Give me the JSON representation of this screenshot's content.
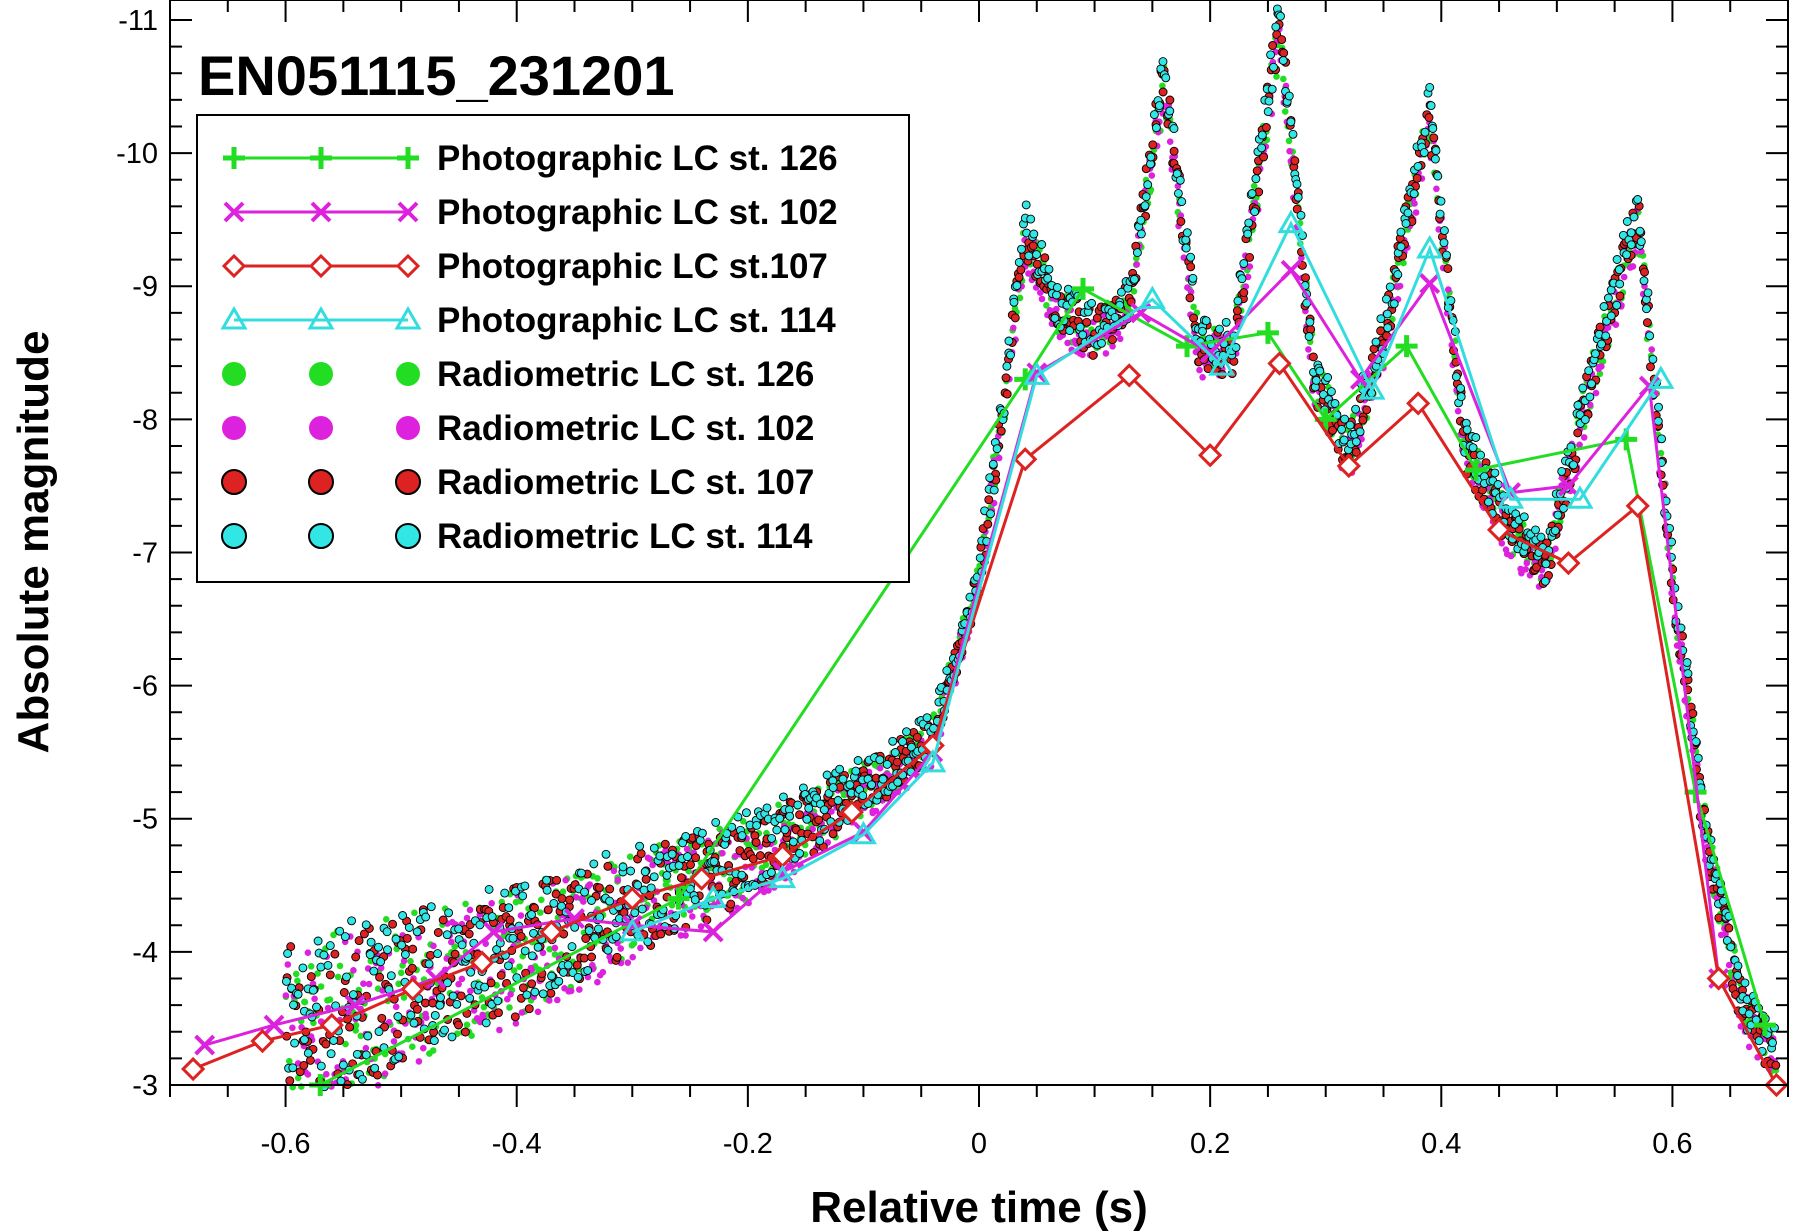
{
  "chart_data": {
    "type": "line",
    "title": "EN051115_231201",
    "xlabel": "Relative time (s)",
    "ylabel": "Absolute magnitude",
    "xlim": [
      -0.7,
      0.7
    ],
    "ylim": [
      -3,
      -11.15
    ],
    "x_ticks": [
      -0.6,
      -0.4,
      -0.2,
      0,
      0.2,
      0.4,
      0.6
    ],
    "x_tick_labels": [
      "-0.6",
      "-0.4",
      "-0.2",
      "0",
      "0.2",
      "0.4",
      "0.6"
    ],
    "y_ticks": [
      -3,
      -4,
      -5,
      -6,
      -7,
      -8,
      -9,
      -10,
      -11
    ],
    "y_tick_labels": [
      "-3",
      "-4",
      "-5",
      "-6",
      "-7",
      "-8",
      "-9",
      "-10",
      "-11"
    ],
    "legend_position": "top-left",
    "series": [
      {
        "name": "Photographic LC st. 126",
        "kind": "photographic",
        "marker": "plus",
        "color": "#22dd22",
        "x": [
          -0.57,
          -0.26,
          0.04,
          0.09,
          0.18,
          0.25,
          0.3,
          0.37,
          0.43,
          0.56,
          0.62,
          0.68
        ],
        "y": [
          -3.0,
          -4.4,
          -8.3,
          -8.98,
          -8.55,
          -8.65,
          -8.0,
          -8.55,
          -7.62,
          -7.85,
          -5.2,
          -3.45
        ]
      },
      {
        "name": "Photographic LC st. 102",
        "kind": "photographic",
        "marker": "x",
        "color": "#dd22dd",
        "x": [
          -0.67,
          -0.61,
          -0.54,
          -0.47,
          -0.42,
          -0.35,
          -0.3,
          -0.23,
          -0.17,
          -0.1,
          -0.04,
          0.05,
          0.14,
          0.2,
          0.27,
          0.33,
          0.39,
          0.46,
          0.51,
          0.58,
          0.64
        ],
        "y": [
          -3.3,
          -3.45,
          -3.6,
          -3.8,
          -4.15,
          -4.25,
          -4.2,
          -4.15,
          -4.6,
          -4.9,
          -5.5,
          -8.35,
          -8.8,
          -8.5,
          -9.12,
          -8.3,
          -9.02,
          -7.45,
          -7.5,
          -8.25,
          -3.8
        ]
      },
      {
        "name": "Photographic LC st.107",
        "kind": "photographic",
        "marker": "diamond",
        "color": "#dd2222",
        "x": [
          -0.68,
          -0.62,
          -0.56,
          -0.49,
          -0.43,
          -0.37,
          -0.3,
          -0.24,
          -0.17,
          -0.11,
          -0.04,
          0.04,
          0.13,
          0.2,
          0.26,
          0.32,
          0.38,
          0.45,
          0.51,
          0.57,
          0.64,
          0.69
        ],
        "y": [
          -3.12,
          -3.33,
          -3.45,
          -3.72,
          -3.92,
          -4.15,
          -4.4,
          -4.55,
          -4.72,
          -5.05,
          -5.55,
          -7.7,
          -8.33,
          -7.73,
          -8.42,
          -7.65,
          -8.12,
          -7.17,
          -6.92,
          -7.35,
          -3.8,
          -3.0
        ]
      },
      {
        "name": "Photographic LC st. 114",
        "kind": "photographic",
        "marker": "triangle",
        "color": "#33dddd",
        "x": [
          -0.3,
          -0.23,
          -0.17,
          -0.1,
          -0.04,
          0.05,
          0.15,
          0.21,
          0.27,
          0.34,
          0.39,
          0.46,
          0.52,
          0.59
        ],
        "y": [
          -4.15,
          -4.4,
          -4.55,
          -4.88,
          -5.42,
          -8.33,
          -8.9,
          -8.4,
          -9.47,
          -8.22,
          -9.28,
          -7.4,
          -7.4,
          -8.3
        ]
      },
      {
        "name": "Radiometric LC st. 126",
        "kind": "radiometric",
        "marker": "circle",
        "color": "#22dd22",
        "outline": false,
        "x": [
          -0.6,
          -0.5,
          -0.4,
          -0.3,
          -0.2,
          -0.1,
          -0.04,
          0.0,
          0.02,
          0.04,
          0.07,
          0.1,
          0.13,
          0.16,
          0.19,
          0.22,
          0.26,
          0.29,
          0.32,
          0.35,
          0.39,
          0.42,
          0.46,
          0.49,
          0.53,
          0.57,
          0.6,
          0.63,
          0.66,
          0.69
        ],
        "y": [
          -3.4,
          -3.7,
          -4.0,
          -4.35,
          -4.7,
          -5.2,
          -5.6,
          -6.8,
          -8.0,
          -9.35,
          -8.8,
          -8.65,
          -8.85,
          -10.5,
          -8.55,
          -8.5,
          -10.9,
          -8.3,
          -7.75,
          -8.6,
          -10.25,
          -7.8,
          -7.15,
          -6.9,
          -8.3,
          -9.5,
          -6.8,
          -4.8,
          -3.6,
          -3.2
        ]
      },
      {
        "name": "Radiometric LC st. 102",
        "kind": "radiometric",
        "marker": "circle",
        "color": "#dd22dd",
        "outline": false,
        "x": [
          -0.6,
          -0.5,
          -0.4,
          -0.3,
          -0.2,
          -0.1,
          -0.04,
          0.0,
          0.02,
          0.04,
          0.07,
          0.1,
          0.13,
          0.16,
          0.19,
          0.22,
          0.26,
          0.29,
          0.32,
          0.35,
          0.39,
          0.42,
          0.46,
          0.49,
          0.53,
          0.57,
          0.6,
          0.63,
          0.66,
          0.69
        ],
        "y": [
          -3.35,
          -3.65,
          -3.95,
          -4.3,
          -4.65,
          -5.15,
          -5.55,
          -6.75,
          -7.95,
          -9.3,
          -8.75,
          -8.6,
          -8.8,
          -10.45,
          -8.5,
          -8.45,
          -10.85,
          -8.25,
          -7.7,
          -8.55,
          -10.2,
          -7.75,
          -7.1,
          -6.85,
          -8.25,
          -9.45,
          -6.75,
          -4.75,
          -3.55,
          -3.15
        ]
      },
      {
        "name": "Radiometric LC st. 107",
        "kind": "radiometric",
        "marker": "circle",
        "color": "#dd2222",
        "outline": true,
        "x": [
          -0.6,
          -0.5,
          -0.4,
          -0.3,
          -0.2,
          -0.1,
          -0.04,
          0.0,
          0.02,
          0.04,
          0.07,
          0.1,
          0.13,
          0.16,
          0.19,
          0.22,
          0.26,
          0.29,
          0.32,
          0.35,
          0.39,
          0.42,
          0.46,
          0.49,
          0.53,
          0.57,
          0.6,
          0.63,
          0.66,
          0.69
        ],
        "y": [
          -3.4,
          -3.7,
          -4.0,
          -4.35,
          -4.7,
          -5.2,
          -5.6,
          -6.8,
          -8.0,
          -9.4,
          -8.8,
          -8.65,
          -8.85,
          -10.6,
          -8.55,
          -8.5,
          -11.0,
          -8.3,
          -7.75,
          -8.6,
          -10.3,
          -7.8,
          -7.15,
          -6.9,
          -8.3,
          -9.55,
          -6.8,
          -4.8,
          -3.6,
          -3.2
        ]
      },
      {
        "name": "Radiometric LC st. 114",
        "kind": "radiometric",
        "marker": "circle",
        "color": "#33e6e6",
        "outline": true,
        "x": [
          -0.6,
          -0.5,
          -0.4,
          -0.3,
          -0.2,
          -0.1,
          -0.04,
          0.0,
          0.02,
          0.04,
          0.07,
          0.1,
          0.13,
          0.16,
          0.19,
          0.22,
          0.26,
          0.29,
          0.32,
          0.35,
          0.39,
          0.42,
          0.46,
          0.49,
          0.53,
          0.57,
          0.6,
          0.63,
          0.66,
          0.69
        ],
        "y": [
          -3.45,
          -3.75,
          -4.05,
          -4.4,
          -4.75,
          -5.25,
          -5.65,
          -6.85,
          -8.05,
          -9.45,
          -8.85,
          -8.7,
          -8.9,
          -10.65,
          -8.6,
          -8.55,
          -11.05,
          -8.35,
          -7.8,
          -8.65,
          -10.35,
          -7.85,
          -7.2,
          -6.95,
          -8.35,
          -9.6,
          -6.85,
          -4.85,
          -3.65,
          -3.25
        ]
      }
    ]
  }
}
